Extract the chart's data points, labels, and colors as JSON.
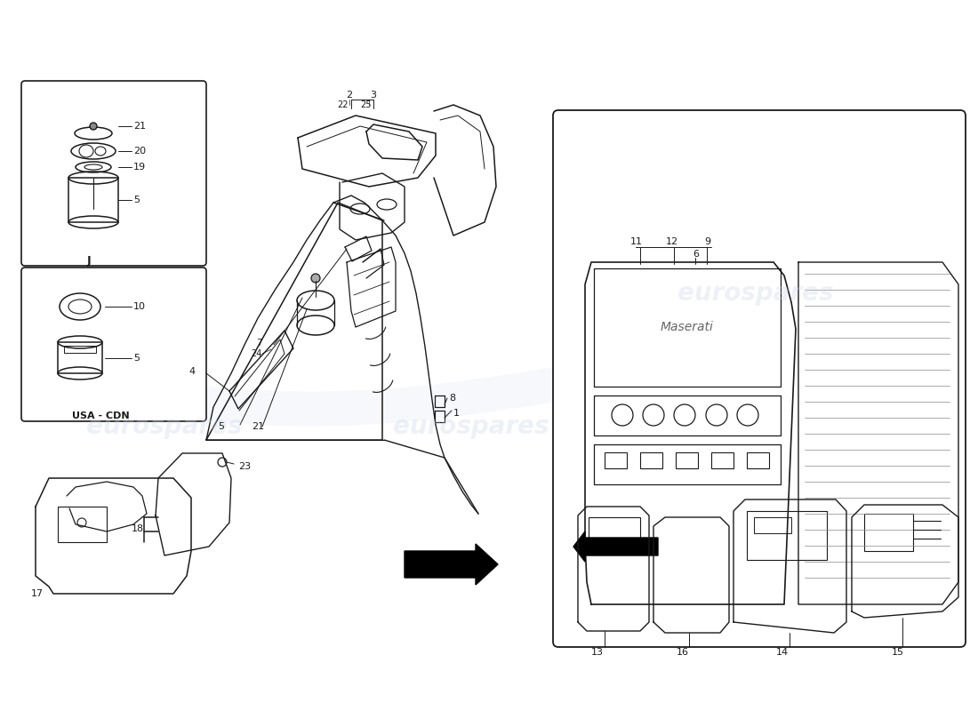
{
  "bg_color": "#ffffff",
  "lc": "#1a1a1a",
  "wm_color": "#c8d4e8",
  "wm_alpha": 0.32,
  "wm_text": "eurospares",
  "figsize": [
    11.0,
    8.0
  ],
  "dpi": 100,
  "xlim": [
    0,
    1100
  ],
  "ylim": [
    0,
    800
  ]
}
